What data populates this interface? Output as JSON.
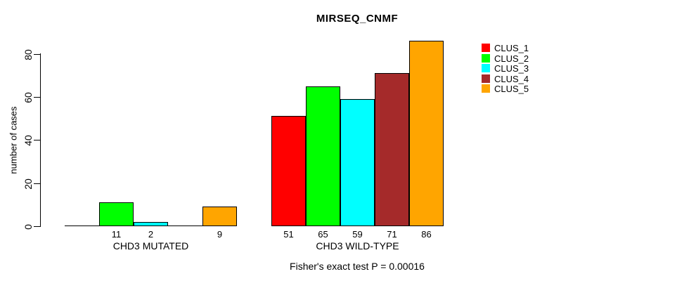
{
  "title": "MIRSEQ_CNMF",
  "ylabel": "number of cases",
  "footer": "Fisher's exact test P = 0.00016",
  "legend": {
    "items": [
      {
        "label": "CLUS_1",
        "color": "#FF0000"
      },
      {
        "label": "CLUS_2",
        "color": "#00FF00"
      },
      {
        "label": "CLUS_3",
        "color": "#00FFFF"
      },
      {
        "label": "CLUS_4",
        "color": "#A52A2A"
      },
      {
        "label": "CLUS_5",
        "color": "#FFA500"
      }
    ]
  },
  "chart_data": {
    "type": "bar",
    "title": "MIRSEQ_CNMF",
    "xlabel": "",
    "ylabel": "number of cases",
    "ylim": [
      0,
      86
    ],
    "yticks": [
      0,
      20,
      40,
      60,
      80
    ],
    "ytick_labels": [
      "0",
      "20",
      "40",
      "60",
      "80"
    ],
    "grid": false,
    "legend_position": "top-right",
    "categories": [
      "CHD3 MUTATED",
      "CHD3 WILD-TYPE"
    ],
    "series": [
      {
        "name": "CLUS_1",
        "color": "#FF0000",
        "values": [
          0,
          51
        ]
      },
      {
        "name": "CLUS_2",
        "color": "#00FF00",
        "values": [
          11,
          65
        ]
      },
      {
        "name": "CLUS_3",
        "color": "#00FFFF",
        "values": [
          2,
          59
        ]
      },
      {
        "name": "CLUS_4",
        "color": "#A52A2A",
        "values": [
          0,
          71
        ]
      },
      {
        "name": "CLUS_5",
        "color": "#FFA500",
        "values": [
          9,
          86
        ]
      }
    ],
    "bar_value_labels": [
      [
        "",
        "11",
        "2",
        "",
        "9"
      ],
      [
        "51",
        "65",
        "59",
        "71",
        "86"
      ]
    ],
    "annotation": "Fisher's exact test P = 0.00016"
  }
}
